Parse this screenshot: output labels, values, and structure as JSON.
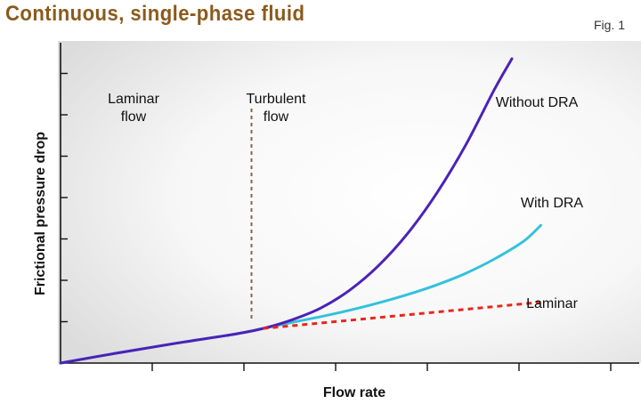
{
  "header": {
    "title": "Continuous, single-phase fluid",
    "fig_label": "Fig. 1"
  },
  "colors": {
    "title": "#8a5a1c",
    "without_dra": "#4b22b8",
    "with_dra": "#32c2dc",
    "laminar": "#e8261c",
    "boundary": "#8a6450"
  },
  "chart_data": {
    "type": "line",
    "title": "Continuous, single-phase fluid",
    "xlabel": "Flow rate",
    "ylabel": "Frictional pressure drop",
    "xlim": [
      0,
      10
    ],
    "ylim": [
      0,
      10
    ],
    "grid": false,
    "x_ticks_labeled": false,
    "y_ticks_labeled": false,
    "regions": [
      {
        "label": "Laminar\nflow",
        "x_center": 0.9
      },
      {
        "label": "Turbulent\nflow",
        "x_center": 4.2
      }
    ],
    "boundary_x": 3.3,
    "series": [
      {
        "name": "Without DRA",
        "style": "solid",
        "color": "#4b22b8",
        "x": [
          0,
          1,
          2,
          3,
          3.5,
          4,
          4.5,
          5,
          5.5,
          6,
          6.5,
          7,
          7.5,
          7.8
        ],
        "y": [
          0.0,
          0.32,
          0.62,
          0.9,
          1.08,
          1.35,
          1.72,
          2.28,
          3.05,
          4.05,
          5.3,
          6.8,
          8.55,
          9.5
        ]
      },
      {
        "name": "With DRA",
        "style": "solid",
        "color": "#32c2dc",
        "x": [
          0,
          1,
          2,
          3,
          3.5,
          4,
          4.5,
          5,
          5.5,
          6,
          6.5,
          7,
          7.5,
          8,
          8.3
        ],
        "y": [
          0.0,
          0.32,
          0.62,
          0.9,
          1.08,
          1.27,
          1.45,
          1.65,
          1.88,
          2.14,
          2.44,
          2.8,
          3.25,
          3.8,
          4.3
        ]
      },
      {
        "name": "Laminar",
        "style": "dashed",
        "color": "#e8261c",
        "x": [
          3.5,
          8.3
        ],
        "y": [
          1.08,
          1.9
        ]
      }
    ]
  }
}
